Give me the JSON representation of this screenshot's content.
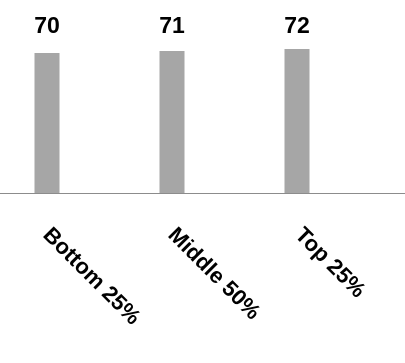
{
  "chart_data": {
    "type": "bar",
    "categories": [
      "Bottom 25%",
      "Middle 50%",
      "Top 25%"
    ],
    "values": [
      70,
      71,
      72
    ],
    "title": "",
    "xlabel": "",
    "ylabel": "",
    "ylim": [
      0,
      75
    ],
    "grid": false,
    "legend": "none",
    "colors": {
      "bar": "#a6a6a6",
      "axis": "#8c8c8c",
      "text": "#000000"
    }
  }
}
